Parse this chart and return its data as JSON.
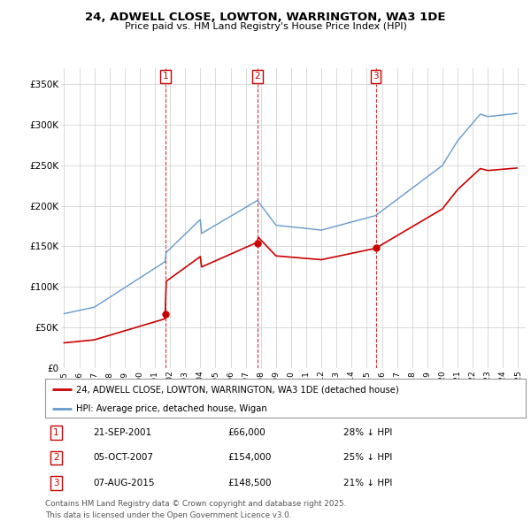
{
  "title": "24, ADWELL CLOSE, LOWTON, WARRINGTON, WA3 1DE",
  "subtitle": "Price paid vs. HM Land Registry's House Price Index (HPI)",
  "ylim": [
    0,
    370000
  ],
  "xlim_start": 1994.8,
  "xlim_end": 2025.5,
  "sale_color": "#cc0000",
  "hpi_color": "#6699cc",
  "sale_label": "24, ADWELL CLOSE, LOWTON, WARRINGTON, WA3 1DE (detached house)",
  "hpi_label": "HPI: Average price, detached house, Wigan",
  "transactions": [
    {
      "num": 1,
      "date_str": "21-SEP-2001",
      "date_x": 2001.72,
      "price": 66000,
      "pct_str": "28% ↓ HPI"
    },
    {
      "num": 2,
      "date_str": "05-OCT-2007",
      "date_x": 2007.76,
      "price": 154000,
      "pct_str": "25% ↓ HPI"
    },
    {
      "num": 3,
      "date_str": "07-AUG-2015",
      "date_x": 2015.59,
      "price": 148500,
      "pct_str": "21% ↓ HPI"
    }
  ],
  "table_rows": [
    {
      "num": "1",
      "date": "21-SEP-2001",
      "price": "£66,000",
      "pct": "28% ↓ HPI"
    },
    {
      "num": "2",
      "date": "05-OCT-2007",
      "price": "£154,000",
      "pct": "25% ↓ HPI"
    },
    {
      "num": "3",
      "date": "07-AUG-2015",
      "price": "£148,500",
      "pct": "21% ↓ HPI"
    }
  ],
  "footer_lines": [
    "Contains HM Land Registry data © Crown copyright and database right 2025.",
    "This data is licensed under the Open Government Licence v3.0."
  ],
  "background_color": "#ffffff",
  "grid_color": "#cccccc",
  "yticks": [
    0,
    50000,
    100000,
    150000,
    200000,
    250000,
    300000,
    350000
  ],
  "ytick_labels": [
    "£0",
    "£50K",
    "£100K",
    "£150K",
    "£200K",
    "£250K",
    "£300K",
    "£350K"
  ]
}
